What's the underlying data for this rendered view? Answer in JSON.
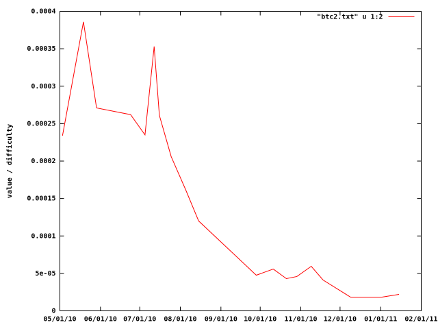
{
  "chart_data": {
    "type": "line",
    "y_label": "value / difficulty",
    "x": [
      "2010-05-03",
      "2010-05-19",
      "2010-05-29",
      "2010-06-24",
      "2010-07-05",
      "2010-07-12",
      "2010-07-16",
      "2010-07-25",
      "2010-08-05",
      "2010-08-15",
      "2010-09-28",
      "2010-10-11",
      "2010-10-21",
      "2010-10-29",
      "2010-11-09",
      "2010-11-18",
      "2010-12-09",
      "2011-01-02",
      "2011-01-15"
    ],
    "series": [
      {
        "name": "\"btc2.txt\" u 1:2",
        "color": "#ff0000",
        "values": [
          0.000234,
          0.000386,
          0.000271,
          0.000262,
          0.000235,
          0.000353,
          0.000261,
          0.000206,
          0.000162,
          0.00012,
          4.76e-05,
          5.58e-05,
          4.3e-05,
          4.58e-05,
          5.95e-05,
          4.12e-05,
          1.83e-05,
          1.83e-05,
          2.2e-05
        ]
      }
    ],
    "xlim": [
      "2010-05-01",
      "2011-02-01"
    ],
    "xticks": [
      {
        "value": "2010-05-01",
        "label": "05/01/10"
      },
      {
        "value": "2010-06-01",
        "label": "06/01/10"
      },
      {
        "value": "2010-07-01",
        "label": "07/01/10"
      },
      {
        "value": "2010-08-01",
        "label": "08/01/10"
      },
      {
        "value": "2010-09-01",
        "label": "09/01/10"
      },
      {
        "value": "2010-10-01",
        "label": "10/01/10"
      },
      {
        "value": "2010-11-01",
        "label": "11/01/10"
      },
      {
        "value": "2010-12-01",
        "label": "12/01/10"
      },
      {
        "value": "2011-01-01",
        "label": "01/01/11"
      },
      {
        "value": "2011-02-01",
        "label": "02/01/11"
      }
    ],
    "ylim": [
      0,
      0.0004
    ],
    "yticks": [
      0,
      {
        "value": 5e-05,
        "label": "5e-05"
      },
      0.0001,
      0.00015,
      0.0002,
      0.00025,
      0.0003,
      0.00035,
      0.0004
    ],
    "legend": "top-right"
  }
}
